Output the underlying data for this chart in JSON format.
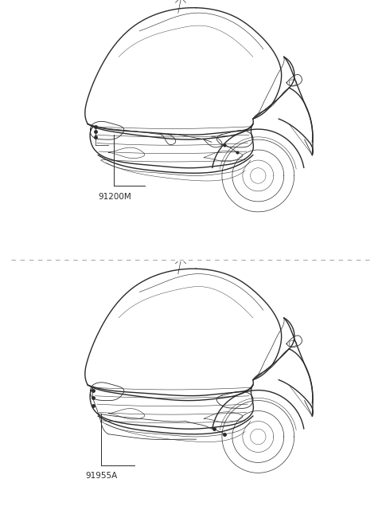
{
  "background_color": "#ffffff",
  "line_color": "#2a2a2a",
  "label1": "91200M",
  "label2": "91955A",
  "fig_width": 4.8,
  "fig_height": 6.55,
  "lw_body": 1.0,
  "lw_detail": 0.6,
  "lw_wire": 0.55,
  "lw_sep": 0.7
}
